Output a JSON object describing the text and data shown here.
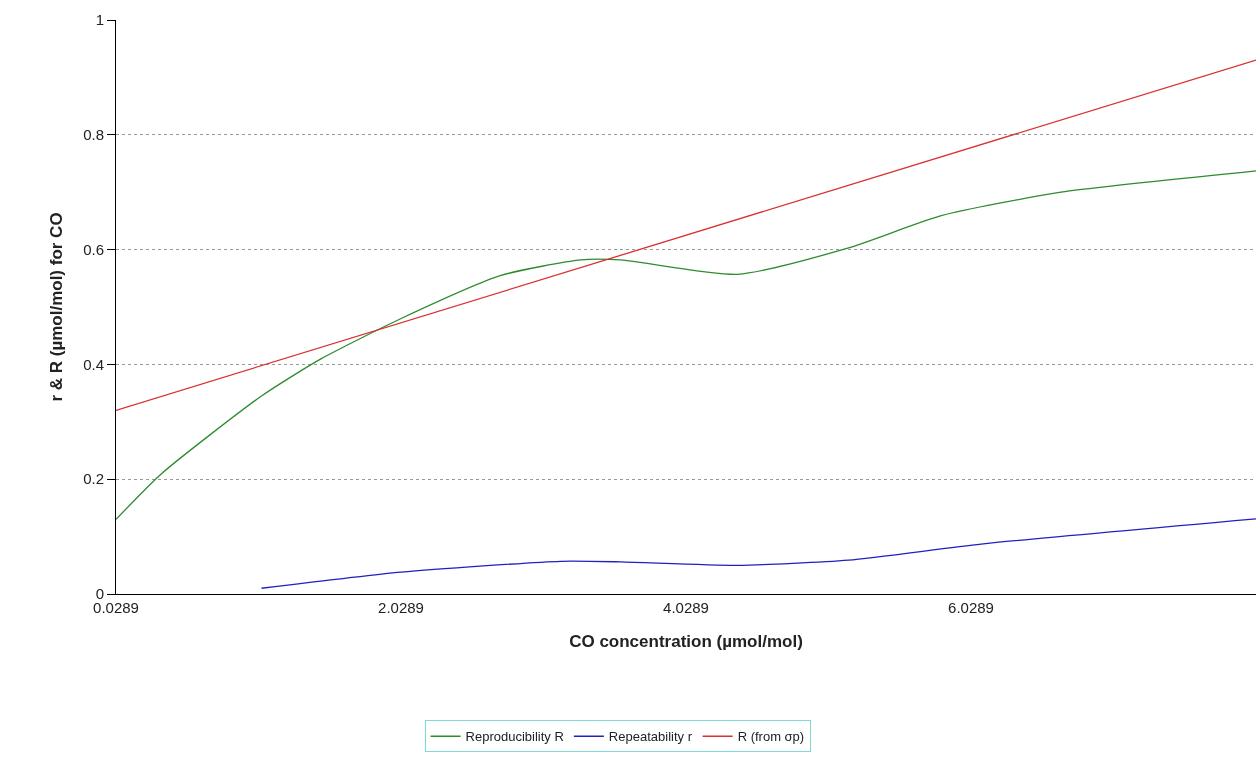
{
  "chart_data": {
    "type": "line",
    "xlabel": "CO concentration (µmol/mol)",
    "ylabel": "r & R (µmol/mol) for CO",
    "xlim": [
      0.0289,
      8.0289
    ],
    "xticks": [
      0.0289,
      2.0289,
      4.0289,
      6.0289
    ],
    "ylim": [
      0,
      1
    ],
    "yticks": [
      0,
      0.2,
      0.4,
      0.6,
      0.8,
      1
    ],
    "grid": "y",
    "legend": "bottom",
    "marker": "none",
    "line_style": "solid",
    "series": [
      {
        "name": "Reproducibility R",
        "color": "#2e8b2e",
        "x": [
          0.0289,
          0.35,
          1.05,
          1.47,
          2.03,
          2.73,
          3.29,
          3.57,
          4.39,
          5.17,
          5.82,
          6.66,
          7.95,
          8.0289
        ],
        "values": [
          0.13,
          0.21,
          0.345,
          0.41,
          0.48,
          0.555,
          0.582,
          0.582,
          0.557,
          0.603,
          0.659,
          0.7,
          0.735,
          0.737
        ]
      },
      {
        "name": "Repeatability r",
        "color": "#2020c0",
        "x": [
          1.05,
          2.03,
          3.15,
          3.57,
          4.39,
          5.17,
          6.1,
          8.0289
        ],
        "values": [
          0.01,
          0.038,
          0.057,
          0.056,
          0.05,
          0.059,
          0.087,
          0.131
        ]
      },
      {
        "name": "R (from σp)",
        "color": "#d93030",
        "x": [
          0.0289,
          8.0289
        ],
        "values": [
          0.32,
          0.93
        ]
      }
    ]
  }
}
